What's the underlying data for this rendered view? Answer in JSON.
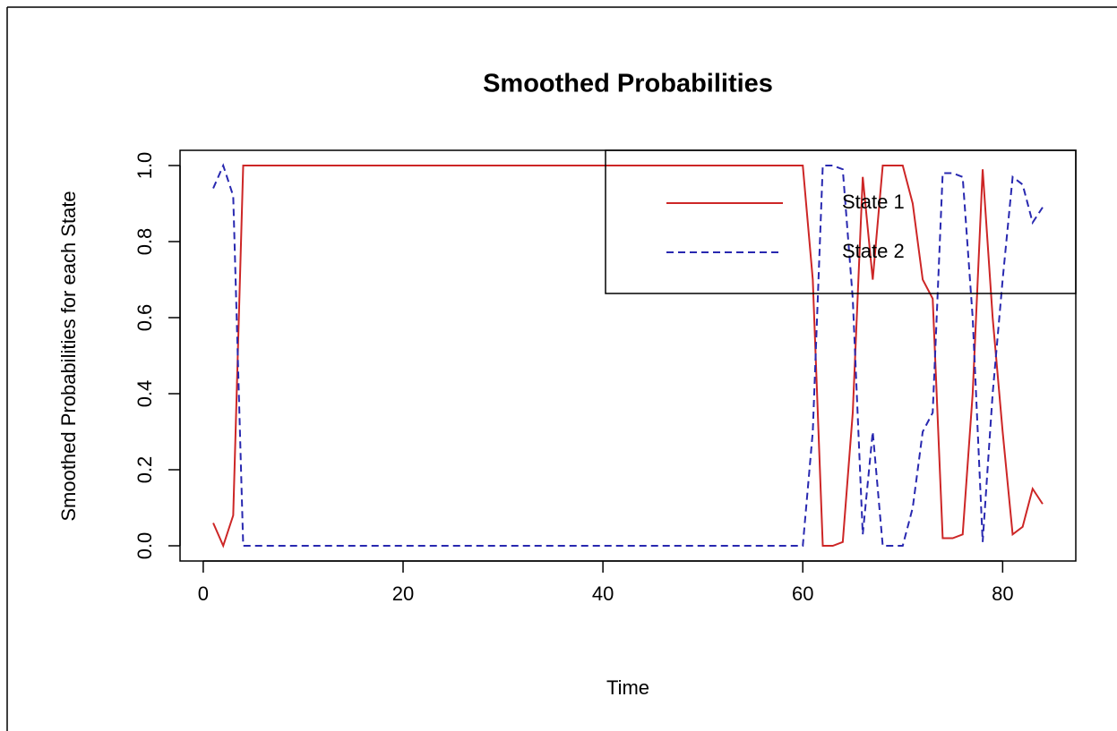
{
  "chart_data": {
    "type": "line",
    "title": "Smoothed Probabilities",
    "x_label": "Time",
    "y_label": "Smoothed Probabilities for each State",
    "x": [
      1,
      2,
      3,
      4,
      5,
      6,
      7,
      8,
      9,
      10,
      11,
      12,
      13,
      14,
      15,
      16,
      17,
      18,
      19,
      20,
      21,
      22,
      23,
      24,
      25,
      26,
      27,
      28,
      29,
      30,
      31,
      32,
      33,
      34,
      35,
      36,
      37,
      38,
      39,
      40,
      41,
      42,
      43,
      44,
      45,
      46,
      47,
      48,
      49,
      50,
      51,
      52,
      53,
      54,
      55,
      56,
      57,
      58,
      59,
      60,
      61,
      62,
      63,
      64,
      65,
      66,
      67,
      68,
      69,
      70,
      71,
      72,
      73,
      74,
      75,
      76,
      77,
      78,
      79,
      80,
      81,
      82,
      83,
      84
    ],
    "series": [
      {
        "name": "State 1",
        "color": "#cd2626",
        "dash": false,
        "values": [
          0.06,
          0,
          0.08,
          1,
          1,
          1,
          1,
          1,
          1,
          1,
          1,
          1,
          1,
          1,
          1,
          1,
          1,
          1,
          1,
          1,
          1,
          1,
          1,
          1,
          1,
          1,
          1,
          1,
          1,
          1,
          1,
          1,
          1,
          1,
          1,
          1,
          1,
          1,
          1,
          1,
          1,
          1,
          1,
          1,
          1,
          1,
          1,
          1,
          1,
          1,
          1,
          1,
          1,
          1,
          1,
          1,
          1,
          1,
          1,
          1,
          0.7,
          0,
          0,
          0.01,
          0.35,
          0.97,
          0.7,
          1,
          1,
          1,
          0.9,
          0.7,
          0.65,
          0.02,
          0.02,
          0.03,
          0.4,
          0.99,
          0.6,
          0.3,
          0.03,
          0.05,
          0.15,
          0.11
        ]
      },
      {
        "name": "State 2",
        "color": "#2828b0",
        "dash": true,
        "values": [
          0.94,
          1,
          0.92,
          0,
          0,
          0,
          0,
          0,
          0,
          0,
          0,
          0,
          0,
          0,
          0,
          0,
          0,
          0,
          0,
          0,
          0,
          0,
          0,
          0,
          0,
          0,
          0,
          0,
          0,
          0,
          0,
          0,
          0,
          0,
          0,
          0,
          0,
          0,
          0,
          0,
          0,
          0,
          0,
          0,
          0,
          0,
          0,
          0,
          0,
          0,
          0,
          0,
          0,
          0,
          0,
          0,
          0,
          0,
          0,
          0,
          0.3,
          1,
          1,
          0.99,
          0.65,
          0.03,
          0.3,
          0,
          0,
          0,
          0.1,
          0.3,
          0.35,
          0.98,
          0.98,
          0.97,
          0.6,
          0.01,
          0.4,
          0.7,
          0.97,
          0.95,
          0.85,
          0.89
        ]
      }
    ],
    "xlim": [
      -2.32,
      87.32
    ],
    "xticks": [
      0,
      20,
      40,
      60,
      80
    ],
    "ylim": [
      -0.04,
      1.04
    ],
    "yticks": [
      {
        "value": 0,
        "label": "0.0"
      },
      0.2,
      0.4,
      0.6,
      0.8,
      {
        "value": 1,
        "label": "1.0"
      }
    ],
    "legend": "topright"
  }
}
